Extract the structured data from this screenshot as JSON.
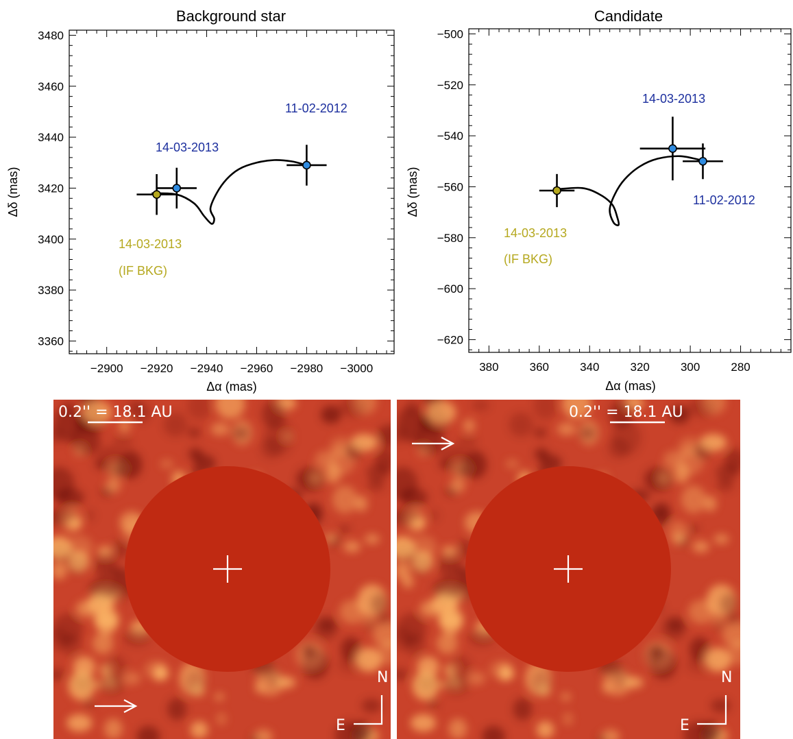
{
  "chart_data": [
    {
      "type": "scatter",
      "title": "Background star",
      "xlabel": "Δα (mas)",
      "ylabel": "Δδ (mas)",
      "xlim": [
        -2885,
        -3015
      ],
      "ylim": [
        3355,
        3482
      ],
      "xticks": [
        -2900,
        -2920,
        -2940,
        -2960,
        -2980,
        -3000
      ],
      "yticks": [
        3360,
        3380,
        3400,
        3420,
        3440,
        3460,
        3480
      ],
      "grid": false,
      "points": [
        {
          "x": -2920,
          "y": 3417.5,
          "xerr": 8,
          "yerr": 8,
          "color": "#b5a81e",
          "label": "14-03-2013",
          "label2": "(IF BKG)"
        },
        {
          "x": -2928,
          "y": 3420,
          "xerr": 8,
          "yerr": 8,
          "color": "#2f8be0",
          "label": "14-03-2013"
        },
        {
          "x": -2980,
          "y": 3429,
          "xerr": 8,
          "yerr": 8,
          "color": "#2f8be0",
          "label": "11-02-2012"
        }
      ],
      "annotation_colors": {
        "blue": "#1c2f9e",
        "olive": "#b5a81e"
      },
      "track": [
        [
          -2918,
          3418
        ],
        [
          -2928,
          3417.5
        ],
        [
          -2935,
          3414
        ],
        [
          -2939,
          3409
        ],
        [
          -2942,
          3406
        ],
        [
          -2943,
          3408
        ],
        [
          -2941.5,
          3412
        ],
        [
          -2944,
          3418
        ],
        [
          -2948,
          3423.5
        ],
        [
          -2953,
          3427.5
        ],
        [
          -2960,
          3430
        ],
        [
          -2967,
          3431
        ],
        [
          -2974,
          3430.5
        ],
        [
          -2980,
          3429
        ]
      ]
    },
    {
      "type": "scatter",
      "title": "Candidate",
      "xlabel": "Δα (mas)",
      "ylabel": "Δδ (mas)",
      "xlim": [
        388,
        260
      ],
      "ylim": [
        -625,
        -498
      ],
      "xticks": [
        380,
        360,
        340,
        320,
        300,
        280
      ],
      "yticks": [
        -500,
        -520,
        -540,
        -560,
        -580,
        -600,
        -620
      ],
      "grid": false,
      "points": [
        {
          "x": 353,
          "y": -561.5,
          "xerr": 7,
          "yerr": 6.5,
          "color": "#b5a81e",
          "label": "14-03-2013",
          "label2": "(IF BKG)"
        },
        {
          "x": 307,
          "y": -545,
          "xerr": 13,
          "yerr": 12.5,
          "color": "#2f8be0",
          "label": "14-03-2013"
        },
        {
          "x": 295,
          "y": -550,
          "xerr": 8,
          "yerr": 7,
          "color": "#2f8be0",
          "label": "11-02-2012"
        }
      ],
      "annotation_colors": {
        "blue": "#1c2f9e",
        "olive": "#b5a81e"
      },
      "track": [
        [
          353,
          -561
        ],
        [
          343,
          -560.5
        ],
        [
          336,
          -563
        ],
        [
          331,
          -567
        ],
        [
          329,
          -572
        ],
        [
          328.5,
          -575
        ],
        [
          330.5,
          -574
        ],
        [
          332,
          -569
        ],
        [
          330,
          -563
        ],
        [
          326,
          -557
        ],
        [
          320,
          -552
        ],
        [
          313,
          -549
        ],
        [
          304,
          -548
        ],
        [
          296,
          -549.5
        ]
      ]
    }
  ],
  "images": {
    "panels": [
      {
        "scale_label": "0.2'' = 18.1 AU",
        "arrow": "companion-pointer"
      },
      {
        "scale_label": "0.2'' = 18.1 AU",
        "arrow": "companion-pointer"
      }
    ],
    "north_label": "N",
    "east_label": "E",
    "colors": {
      "background": "#c9422a",
      "mask": "#c02a12",
      "bright": "#ffbe6a",
      "dark": "#4e0606"
    }
  }
}
